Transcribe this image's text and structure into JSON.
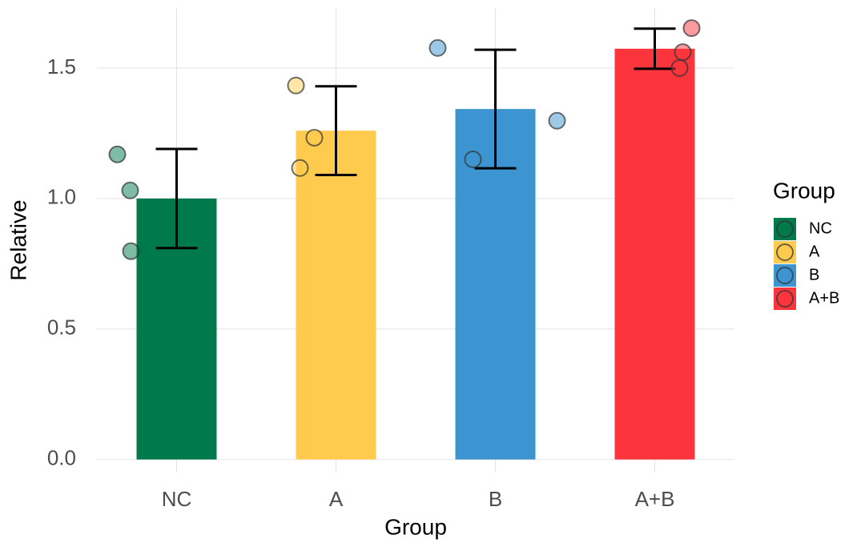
{
  "chart_data": {
    "type": "bar",
    "x_label": "Group",
    "y_label": "Relative",
    "categories": [
      "NC",
      "A",
      "B",
      "A+B"
    ],
    "values": [
      1.0,
      1.26,
      1.343,
      1.574
    ],
    "errors": [
      0.19,
      0.17,
      0.227,
      0.077
    ],
    "colors": [
      "#007a4d",
      "#ffcb4f",
      "#3c94d0",
      "#fc353d"
    ],
    "points": [
      [
        1.169,
        1.031,
        0.798
      ],
      [
        1.433,
        1.233,
        1.117
      ],
      [
        1.577,
        1.298,
        1.15
      ],
      [
        1.653,
        1.561,
        1.5
      ]
    ],
    "ylim": [
      -0.05,
      1.73
    ],
    "yticks": [
      {
        "value": 0,
        "label": "0.0"
      },
      0.5,
      {
        "value": 1,
        "label": "1.0"
      },
      1.5
    ],
    "grid": true,
    "legend_title": "Group",
    "legend_position": "right"
  }
}
